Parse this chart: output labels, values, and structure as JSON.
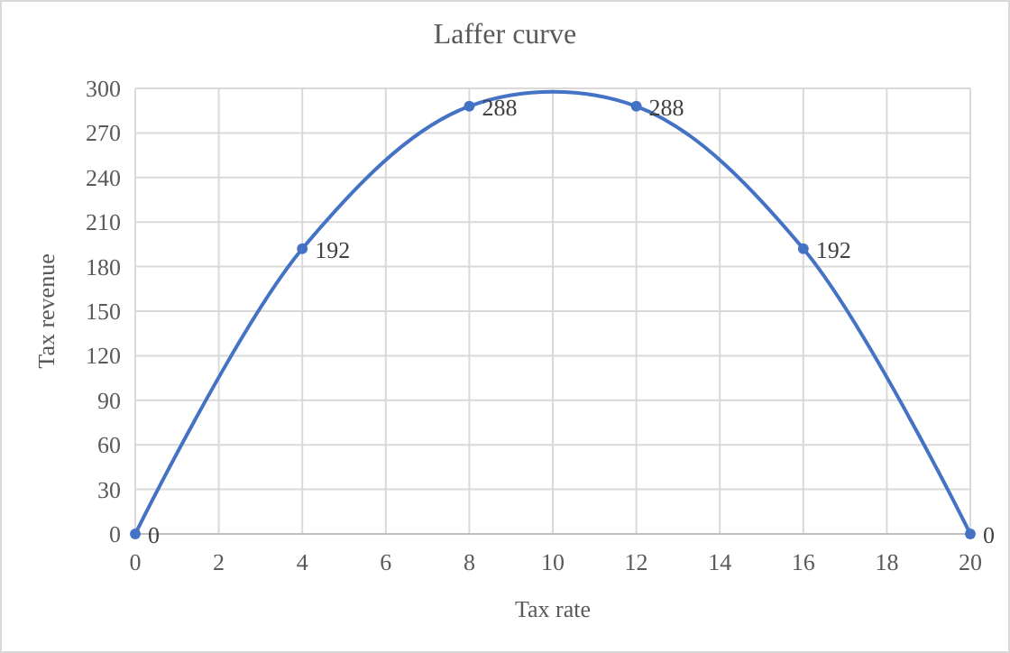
{
  "chart_data": {
    "type": "line",
    "title": "Laffer curve",
    "xlabel": "Tax rate",
    "ylabel": "Tax revenue",
    "x": [
      0,
      4,
      8,
      12,
      16,
      20
    ],
    "series": [
      {
        "color": "#4472c4",
        "values": [
          0,
          192,
          288,
          288,
          192,
          0
        ]
      }
    ],
    "xlim": [
      0,
      20
    ],
    "xticks": [
      0,
      2,
      4,
      6,
      8,
      10,
      12,
      14,
      16,
      18,
      20
    ],
    "ylim": [
      0,
      300
    ],
    "yticks": [
      0,
      30,
      60,
      90,
      120,
      150,
      180,
      210,
      240,
      270,
      300
    ],
    "grid": true,
    "marker": "circle",
    "line_style": "solid",
    "data_labels": true
  }
}
